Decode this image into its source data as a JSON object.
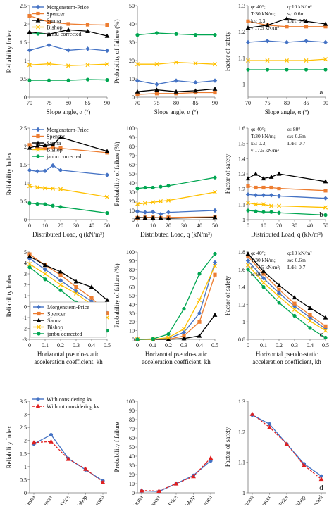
{
  "colors": {
    "Morgenstern-Price": "#4472C4",
    "Spencer": "#ED7D31",
    "Sarma": "#000000",
    "Bishop": "#FFC000",
    "janbu corrected": "#00A651",
    "With considering kv": "#4472C4",
    "Without considering kv": "#E02020"
  },
  "chart_data": [
    {
      "id": "p11",
      "type": "line",
      "panel_label": "",
      "xlabel": "Slope angle, α (º)",
      "ylabel": "Reliability Index",
      "x": [
        70,
        75,
        80,
        85,
        90
      ],
      "xlim": [
        70,
        90
      ],
      "ylim": [
        0,
        2.5
      ],
      "xticks": [
        "70",
        "75",
        "80",
        "85",
        "90"
      ],
      "yticks": [
        "0",
        "0.5",
        "1",
        "1.5",
        "2",
        "2.5"
      ],
      "legend": "top-left",
      "annotations": [],
      "series": [
        {
          "name": "Morgenstern-Price",
          "marker": "diamond",
          "values": [
            1.28,
            1.42,
            1.28,
            1.32,
            1.27
          ]
        },
        {
          "name": "Spencer",
          "marker": "square",
          "values": [
            2.22,
            2.05,
            2.0,
            1.98,
            1.97
          ]
        },
        {
          "name": "Sarma",
          "marker": "triangle",
          "values": [
            1.78,
            1.72,
            1.84,
            1.8,
            1.67
          ]
        },
        {
          "name": "Bishop",
          "marker": "x",
          "values": [
            0.88,
            0.91,
            0.86,
            0.88,
            0.9
          ]
        },
        {
          "name": "janbu corrected",
          "marker": "circle",
          "values": [
            0.46,
            0.46,
            0.46,
            0.48,
            0.47
          ]
        }
      ]
    },
    {
      "id": "p12",
      "type": "line",
      "panel_label": "",
      "xlabel": "Slope angle, α (º)",
      "ylabel": "Probability of failure (%)",
      "x": [
        70,
        75,
        80,
        85,
        90
      ],
      "xlim": [
        70,
        90
      ],
      "ylim": [
        0,
        50
      ],
      "xticks": [
        "70",
        "75",
        "80",
        "85",
        "90"
      ],
      "yticks": [
        "0",
        "10",
        "20",
        "30",
        "40",
        "50"
      ],
      "legend": "",
      "annotations": [],
      "series": [
        {
          "name": "Morgenstern-Price",
          "marker": "diamond",
          "values": [
            9,
            7,
            9,
            8,
            9
          ]
        },
        {
          "name": "Spencer",
          "marker": "square",
          "values": [
            1.5,
            2,
            2,
            2.5,
            2.5
          ]
        },
        {
          "name": "Sarma",
          "marker": "triangle",
          "values": [
            3,
            4,
            3,
            3.5,
            4.5
          ]
        },
        {
          "name": "Bishop",
          "marker": "x",
          "values": [
            18,
            18,
            19,
            18.5,
            18
          ]
        },
        {
          "name": "janbu corrected",
          "marker": "circle",
          "values": [
            34,
            35,
            34.5,
            34,
            34
          ]
        }
      ]
    },
    {
      "id": "p13",
      "type": "line",
      "panel_label": "a",
      "xlabel": "Slope angle, α (º)",
      "ylabel": "Factor of safety",
      "x": [
        70,
        75,
        80,
        85,
        90
      ],
      "xlim": [
        70,
        90
      ],
      "ylim": [
        0.95,
        1.3
      ],
      "xticks": [
        "70",
        "75",
        "80",
        "85",
        "90"
      ],
      "yticks": [
        "1",
        "1.1",
        "1.2",
        "1.3"
      ],
      "legend": "",
      "annotations": [
        "φ: 40°;",
        "q:10 kN/m²",
        "T:30 kN/m;",
        "sᵥ: 0.6m",
        "kₕ: 0.3;",
        "L/H: 0.7",
        "γ:17.5 kN/m³"
      ],
      "series": [
        {
          "name": "Morgenstern-Price",
          "marker": "diamond",
          "values": [
            1.16,
            1.165,
            1.16,
            1.165,
            1.16
          ]
        },
        {
          "name": "Spencer",
          "marker": "square",
          "values": [
            1.24,
            1.225,
            1.22,
            1.22,
            1.22
          ]
        },
        {
          "name": "Sarma",
          "marker": "triangle",
          "values": [
            1.215,
            1.225,
            1.25,
            1.24,
            1.23
          ]
        },
        {
          "name": "Bishop",
          "marker": "x",
          "values": [
            1.09,
            1.09,
            1.09,
            1.09,
            1.095
          ]
        },
        {
          "name": "janbu corrected",
          "marker": "circle",
          "values": [
            1.055,
            1.055,
            1.055,
            1.055,
            1.055
          ]
        }
      ]
    },
    {
      "id": "p21",
      "type": "line",
      "panel_label": "",
      "xlabel": "Distributed Load, q (kN/m²)",
      "ylabel": "Reliability Index",
      "x": [
        0,
        5,
        10,
        15,
        20,
        50
      ],
      "xlim": [
        0,
        50
      ],
      "ylim": [
        0,
        2.5
      ],
      "xticks": [
        "0",
        "10",
        "20",
        "30",
        "40",
        "50"
      ],
      "yticks": [
        "0",
        "0.5",
        "1",
        "1.5",
        "2",
        "2.5"
      ],
      "legend": "top-left",
      "annotations": [],
      "series": [
        {
          "name": "Morgenstern-Price",
          "marker": "diamond",
          "values": [
            1.35,
            1.32,
            1.33,
            1.48,
            1.35,
            1.22
          ]
        },
        {
          "name": "Spencer",
          "marker": "square",
          "values": [
            2.04,
            1.97,
            1.95,
            1.97,
            1.95,
            1.83
          ]
        },
        {
          "name": "Sarma",
          "marker": "triangle",
          "values": [
            1.96,
            2.02,
            2.03,
            2.05,
            2.25,
            1.87
          ]
        },
        {
          "name": "Bishop",
          "marker": "x",
          "values": [
            0.92,
            0.88,
            0.86,
            0.85,
            0.83,
            0.62
          ]
        },
        {
          "name": "janbu corrected",
          "marker": "circle",
          "values": [
            0.45,
            0.43,
            0.42,
            0.38,
            0.35,
            0.18
          ]
        }
      ]
    },
    {
      "id": "p22",
      "type": "line",
      "panel_label": "",
      "xlabel": "Distributed Load, q (kN/m²)",
      "ylabel": "Probability of failure (%)",
      "x": [
        0,
        5,
        10,
        15,
        20,
        50
      ],
      "xlim": [
        0,
        50
      ],
      "ylim": [
        0,
        100
      ],
      "xticks": [
        "0",
        "10",
        "20",
        "30",
        "40",
        "50"
      ],
      "yticks": [
        "0",
        "10",
        "20",
        "30",
        "40",
        "50",
        "60",
        "70",
        "80",
        "90",
        "100"
      ],
      "legend": "",
      "annotations": [],
      "series": [
        {
          "name": "Morgenstern-Price",
          "marker": "diamond",
          "values": [
            9,
            8,
            8.5,
            6,
            8,
            10
          ]
        },
        {
          "name": "Spencer",
          "marker": "square",
          "values": [
            2,
            2.5,
            2.5,
            2,
            2.5,
            3
          ]
        },
        {
          "name": "Sarma",
          "marker": "triangle",
          "values": [
            2.5,
            2,
            2,
            2,
            1.5,
            2.5
          ]
        },
        {
          "name": "Bishop",
          "marker": "x",
          "values": [
            17,
            18,
            19,
            20,
            21,
            30
          ]
        },
        {
          "name": "janbu corrected",
          "marker": "circle",
          "values": [
            34,
            35,
            35,
            36,
            37,
            46
          ]
        }
      ]
    },
    {
      "id": "p23",
      "type": "line",
      "panel_label": "b",
      "xlabel": "Distributed Load, q (kN/m²)",
      "ylabel": "Factor of safety",
      "x": [
        0,
        5,
        10,
        15,
        20,
        50
      ],
      "xlim": [
        0,
        50
      ],
      "ylim": [
        1.0,
        1.6
      ],
      "xticks": [
        "0",
        "10",
        "20",
        "30",
        "40",
        "50"
      ],
      "yticks": [
        "1",
        "1.1",
        "1.2",
        "1.3",
        "1.4",
        "1.5",
        "1.6"
      ],
      "legend": "",
      "annotations": [
        "φ: 40°;",
        "α: 80°",
        "T:30 kN/m;",
        "sv: 0.6m",
        "kₕ: 0.3;",
        "L/H: 0.7",
        "γ:17.5 kN/m³"
      ],
      "series": [
        {
          "name": "Morgenstern-Price",
          "marker": "diamond",
          "values": [
            1.165,
            1.16,
            1.16,
            1.16,
            1.155,
            1.14
          ]
        },
        {
          "name": "Spencer",
          "marker": "square",
          "values": [
            1.22,
            1.21,
            1.21,
            1.21,
            1.205,
            1.19
          ]
        },
        {
          "name": "Sarma",
          "marker": "triangle",
          "values": [
            1.27,
            1.3,
            1.27,
            1.28,
            1.3,
            1.25
          ]
        },
        {
          "name": "Bishop",
          "marker": "x",
          "values": [
            1.11,
            1.1,
            1.1,
            1.09,
            1.09,
            1.08
          ]
        },
        {
          "name": "janbu corrected",
          "marker": "circle",
          "values": [
            1.06,
            1.055,
            1.05,
            1.05,
            1.045,
            1.03
          ]
        }
      ]
    },
    {
      "id": "p31",
      "type": "line",
      "panel_label": "",
      "xlabel": "Horizontal pseudo-static acceleration coefficient, kh",
      "ylabel": "Reliability Index",
      "x": [
        0,
        0.1,
        0.2,
        0.3,
        0.4,
        0.5
      ],
      "xlim": [
        0,
        0.5
      ],
      "ylim": [
        -3,
        5
      ],
      "xticks": [
        "0",
        "0.1",
        "0.2",
        "0.3",
        "0.4",
        "0.5"
      ],
      "yticks": [
        "-3",
        "-2",
        "-1",
        "0",
        "1",
        "2",
        "3",
        "4",
        "5"
      ],
      "legend": "bottom-center",
      "annotations": [],
      "series": [
        {
          "name": "Morgenstern-Price",
          "marker": "diamond",
          "values": [
            4.4,
            3.4,
            2.4,
            1.4,
            0.5,
            -0.6
          ]
        },
        {
          "name": "Spencer",
          "marker": "square",
          "values": [
            4.8,
            3.8,
            2.9,
            1.8,
            0.8,
            -0.6
          ]
        },
        {
          "name": "Sarma",
          "marker": "triangle",
          "values": [
            4.6,
            3.8,
            3.2,
            2.3,
            1.8,
            0.6
          ]
        },
        {
          "name": "Bishop",
          "marker": "x",
          "values": [
            3.9,
            3.0,
            2.0,
            1.2,
            0.2,
            -1.0
          ]
        },
        {
          "name": "janbu corrected",
          "marker": "circle",
          "values": [
            3.6,
            2.5,
            1.5,
            0.4,
            -0.7,
            -2.2
          ]
        }
      ]
    },
    {
      "id": "p32",
      "type": "line",
      "panel_label": "",
      "xlabel": "Horizontal pseudo-static acceleration coefficient, kh",
      "ylabel": "Probability of failure (%)",
      "x": [
        0,
        0.1,
        0.2,
        0.3,
        0.4,
        0.5
      ],
      "xlim": [
        0,
        0.5
      ],
      "ylim": [
        0,
        100
      ],
      "xticks": [
        "0",
        "0.1",
        "0.2",
        "0.3",
        "0.4",
        "0.5"
      ],
      "yticks": [
        "0",
        "10",
        "20",
        "30",
        "40",
        "50",
        "60",
        "70",
        "80",
        "90",
        "100"
      ],
      "legend": "",
      "annotations": [],
      "series": [
        {
          "name": "Morgenstern-Price",
          "marker": "diamond",
          "values": [
            0,
            0,
            1,
            8,
            30,
            88
          ]
        },
        {
          "name": "Spencer",
          "marker": "square",
          "values": [
            0,
            0,
            0,
            4,
            20,
            74
          ]
        },
        {
          "name": "Sarma",
          "marker": "triangle",
          "values": [
            0,
            0,
            0,
            1,
            4,
            28
          ]
        },
        {
          "name": "Bishop",
          "marker": "x",
          "values": [
            0,
            0,
            2,
            12,
            45,
            84
          ]
        },
        {
          "name": "janbu corrected",
          "marker": "circle",
          "values": [
            0,
            0.5,
            6,
            35,
            75,
            98
          ]
        }
      ]
    },
    {
      "id": "p33",
      "type": "line",
      "panel_label": "c",
      "xlabel": "Horizontal pseudo-static acceleration coefficient, kh",
      "ylabel": "Factor of safety",
      "x": [
        0,
        0.1,
        0.2,
        0.3,
        0.4,
        0.5
      ],
      "xlim": [
        0,
        0.5
      ],
      "ylim": [
        0.8,
        1.8
      ],
      "xticks": [
        "0",
        "0.1",
        "0.2",
        "0.3",
        "0.4",
        "0.5"
      ],
      "yticks": [
        "0.8",
        "1",
        "1.2",
        "1.4",
        "1.6",
        "1.8"
      ],
      "legend": "",
      "annotations": [
        "φ: 40°;",
        "q:10 kN/m²",
        "T:30 kN/m;",
        "sv: 0.6m",
        "γ:17.5 kN/m³;",
        "L/H: 0.7",
        "α: 80°"
      ],
      "series": [
        {
          "name": "Morgenstern-Price",
          "marker": "diamond",
          "values": [
            1.7,
            1.5,
            1.33,
            1.18,
            1.05,
            0.92
          ]
        },
        {
          "name": "Spencer",
          "marker": "square",
          "values": [
            1.75,
            1.55,
            1.37,
            1.21,
            1.08,
            0.95
          ]
        },
        {
          "name": "Sarma",
          "marker": "triangle",
          "values": [
            1.78,
            1.58,
            1.42,
            1.28,
            1.16,
            1.05
          ]
        },
        {
          "name": "Bishop",
          "marker": "x",
          "values": [
            1.65,
            1.45,
            1.29,
            1.14,
            1.01,
            0.9
          ]
        },
        {
          "name": "janbu corrected",
          "marker": "circle",
          "values": [
            1.6,
            1.4,
            1.22,
            1.07,
            0.93,
            0.82
          ]
        }
      ]
    },
    {
      "id": "p41",
      "type": "line",
      "panel_label": "",
      "xlabel": "",
      "ylabel": "Reliability Index",
      "categories": [
        "Sarma",
        "Spencer",
        "Morgenstern-Price",
        "Bishop",
        "janbu corrected"
      ],
      "ylim": [
        0,
        3.5
      ],
      "yticks": [
        "0",
        "0.5",
        "1",
        "1.5",
        "2",
        "2.5",
        "3",
        "3.5"
      ],
      "legend": "top-center",
      "annotations": [],
      "series": [
        {
          "name": "With considering kv",
          "marker": "circle",
          "values": [
            1.87,
            2.22,
            1.31,
            0.88,
            0.46
          ]
        },
        {
          "name": "Without considering kv",
          "marker": "triangle",
          "dashed": true,
          "values": [
            1.92,
            1.96,
            1.29,
            0.91,
            0.4
          ]
        }
      ]
    },
    {
      "id": "p42",
      "type": "line",
      "panel_label": "",
      "xlabel": "",
      "ylabel": "Probability f failure",
      "categories": [
        "Sarma",
        "Spencer",
        "Morgenstern-Price",
        "Bishop",
        "janbu corrected"
      ],
      "ylim": [
        0,
        100
      ],
      "yticks": [
        "0",
        "10",
        "20",
        "30",
        "40",
        "50",
        "60",
        "70",
        "80",
        "90",
        "100"
      ],
      "legend": "",
      "annotations": [],
      "series": [
        {
          "name": "With considering kv",
          "marker": "circle",
          "values": [
            2,
            1.5,
            10,
            19,
            35
          ]
        },
        {
          "name": "Without considering kv",
          "marker": "triangle",
          "dashed": true,
          "values": [
            2.5,
            2,
            10,
            18,
            38
          ]
        }
      ]
    },
    {
      "id": "p43",
      "type": "line",
      "panel_label": "d",
      "xlabel": "",
      "ylabel": "Factor of safety",
      "categories": [
        "Sarma",
        "Spencer",
        "Morgenstern-Price",
        "Bishop",
        "janbu corrected"
      ],
      "ylim": [
        1.0,
        1.3
      ],
      "yticks": [
        "1",
        "1.1",
        "1.2",
        "1.3"
      ],
      "legend": "",
      "annotations": [],
      "series": [
        {
          "name": "With considering kv",
          "marker": "circle",
          "values": [
            1.255,
            1.225,
            1.16,
            1.095,
            1.055
          ]
        },
        {
          "name": "Without considering kv",
          "marker": "triangle",
          "dashed": true,
          "values": [
            1.258,
            1.215,
            1.16,
            1.09,
            1.045
          ]
        }
      ]
    }
  ]
}
